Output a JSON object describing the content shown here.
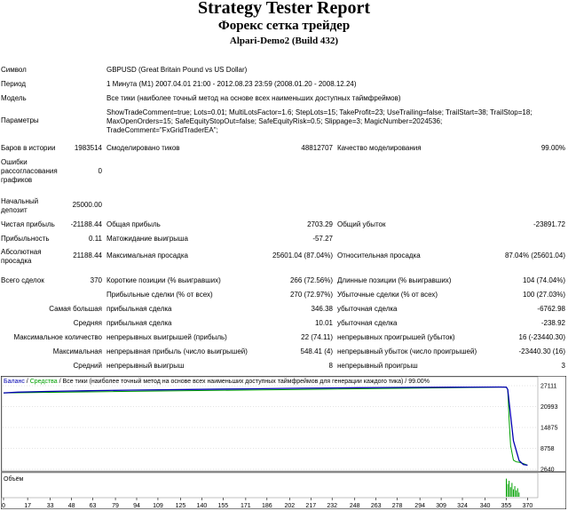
{
  "header": {
    "title": "Strategy Tester Report",
    "subtitle": "Форекс сетка трейдер",
    "build": "Alpari-Demo2 (Build 432)"
  },
  "report": {
    "symbol": {
      "label": "Символ",
      "value": "GBPUSD (Great Britain Pound vs US Dollar)"
    },
    "period": {
      "label": "Период",
      "value": "1 Минута (M1) 2007.04.01 21:00 - 2012.08.23 23:59 (2008.01.20 - 2008.12.24)"
    },
    "model": {
      "label": "Модель",
      "value": "Все тики (наиболее точный метод на основе всех наименьших доступных таймфреймов)"
    },
    "params": {
      "label": "Параметры",
      "value": "ShowTradeComment=true; Lots=0.01; MultiLotsFactor=1.6; StepLots=15; TakeProfit=23; UseTrailing=false; TrailStart=38; TrailStop=18; MaxOpenOrders=15; SafeEquityStopOut=false; SafeEquityRisk=0.5; Slippage=3; MagicNumber=2024536; TradeComment=\"FxGridTraderEA\";"
    },
    "bars": {
      "label": "Баров в истории",
      "value": "1983514"
    },
    "ticks": {
      "label": "Смоделировано тиков",
      "value": "48812707"
    },
    "quality": {
      "label": "Качество моделирования",
      "value": "99.00%"
    },
    "errors": {
      "label": "Ошибки рассогласования графиков",
      "value": "0"
    },
    "deposit": {
      "label": "Начальный депозит",
      "value": "25000.00"
    },
    "net_profit": {
      "label": "Чистая прибыль",
      "value": "-21188.44"
    },
    "gross_profit": {
      "label": "Общая прибыль",
      "value": "2703.29"
    },
    "gross_loss": {
      "label": "Общий убыток",
      "value": "-23891.72"
    },
    "profit_factor": {
      "label": "Прибыльность",
      "value": "0.11"
    },
    "expected_payoff": {
      "label": "Матожидание выигрыша",
      "value": "-57.27"
    },
    "abs_drawdown": {
      "label": "Абсолютная просадка",
      "value": "21188.44"
    },
    "max_drawdown": {
      "label": "Максимальная просадка",
      "value": "25601.04 (87.04%)"
    },
    "rel_drawdown": {
      "label": "Относительная просадка",
      "value": "87.04% (25601.04)"
    },
    "total_trades": {
      "label": "Всего сделок",
      "value": "370"
    },
    "short_positions": {
      "label": "Короткие позиции (% выигравших)",
      "value": "266 (72.56%)"
    },
    "long_positions": {
      "label": "Длинные позиции (% выигравших)",
      "value": "104 (74.04%)"
    },
    "profit_trades": {
      "label": "Прибыльные сделки (% от всех)",
      "value": "270 (72.97%)"
    },
    "loss_trades": {
      "label": "Убыточные сделки (% от всех)",
      "value": "100 (27.03%)"
    },
    "largest_label": "Самая большая",
    "largest_profit": {
      "label": "прибыльная сделка",
      "value": "346.38"
    },
    "largest_loss": {
      "label": "убыточная сделка",
      "value": "-6762.98"
    },
    "average_label": "Средняя",
    "average_profit": {
      "label": "прибыльная сделка",
      "value": "10.01"
    },
    "average_loss": {
      "label": "убыточная сделка",
      "value": "-238.92"
    },
    "max_count_label": "Максимальное количество",
    "max_consec_wins": {
      "label": "непрерывных выигрышей (прибыль)",
      "value": "22 (74.11)"
    },
    "max_consec_losses": {
      "label": "непрерывных проигрышей (убыток)",
      "value": "16 (-23440.30)"
    },
    "maximal_label": "Максимальная",
    "max_consec_profit": {
      "label": "непрерывная прибыль (число выигрышей)",
      "value": "548.41 (4)"
    },
    "max_consec_loss": {
      "label": "непрерывный убыток (число проигрышей)",
      "value": "-23440.30 (16)"
    },
    "avg_label": "Средний",
    "avg_consec_wins": {
      "label": "непрерывный выигрыш",
      "value": "8"
    },
    "avg_consec_losses": {
      "label": "непрерывный проигрыш",
      "value": "3"
    }
  },
  "chart_data": {
    "type": "line",
    "legend": {
      "balance": "Баланс",
      "sep1": " / ",
      "equity": "Средства",
      "sep2": " / ",
      "model": "Все тики (наиболее точный метод на основе всех наименьших доступных таймфреймов для генерации каждого тика)",
      "sep3": " / ",
      "quality": "99.00%"
    },
    "volume_label": "Объём",
    "yticks": [
      27111,
      20993,
      14875,
      8758,
      2640
    ],
    "ylim": [
      2640,
      27111
    ],
    "xticks": [
      0,
      17,
      33,
      48,
      63,
      79,
      94,
      109,
      125,
      140,
      155,
      171,
      186,
      202,
      217,
      232,
      248,
      263,
      278,
      294,
      309,
      324,
      340,
      355,
      370
    ],
    "xlim": [
      0,
      376
    ],
    "colors": {
      "balance": "#0000b0",
      "equity": "#00a000",
      "volume": "#00a000"
    },
    "series": [
      {
        "name": "Баланс",
        "x": [
          0,
          10,
          30,
          60,
          90,
          130,
          170,
          210,
          250,
          290,
          330,
          350,
          355,
          356,
          360,
          364,
          367,
          370
        ],
        "y": [
          25000,
          25200,
          25420,
          25620,
          25800,
          26000,
          26180,
          26350,
          26500,
          26620,
          26700,
          26720,
          26700,
          26000,
          11000,
          5200,
          4050,
          3812
        ]
      },
      {
        "name": "Средства",
        "x": [
          0,
          350,
          355,
          356,
          357,
          358,
          360,
          362,
          364,
          367,
          370
        ],
        "y": [
          25000,
          26700,
          26700,
          26000,
          17000,
          9600,
          5300,
          4800,
          4700,
          4300,
          3812
        ]
      }
    ],
    "volume": [
      {
        "x": 355,
        "v": 0.85
      },
      {
        "x": 356,
        "v": 0.6
      },
      {
        "x": 357,
        "v": 0.75
      },
      {
        "x": 358,
        "v": 0.45
      },
      {
        "x": 359,
        "v": 0.65
      },
      {
        "x": 360,
        "v": 0.35
      },
      {
        "x": 361,
        "v": 0.5
      },
      {
        "x": 362,
        "v": 0.3
      },
      {
        "x": 363,
        "v": 0.4
      },
      {
        "x": 364,
        "v": 0.2
      }
    ]
  }
}
